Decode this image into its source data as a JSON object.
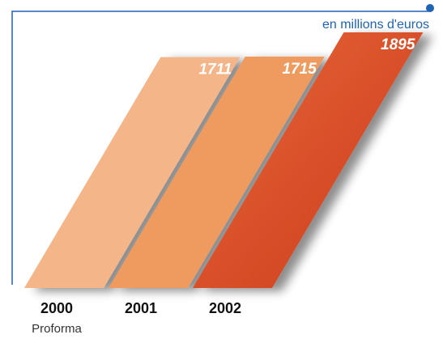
{
  "chart_data": {
    "type": "bar",
    "unit_label": "en millions d'euros",
    "categories": [
      "2000",
      "2001",
      "2002"
    ],
    "sublabels": [
      "Proforma",
      null,
      null
    ],
    "values": [
      1711,
      1715,
      1895
    ],
    "colors": [
      "#f4b589",
      "#ef9a5f",
      "#d9502a"
    ]
  }
}
